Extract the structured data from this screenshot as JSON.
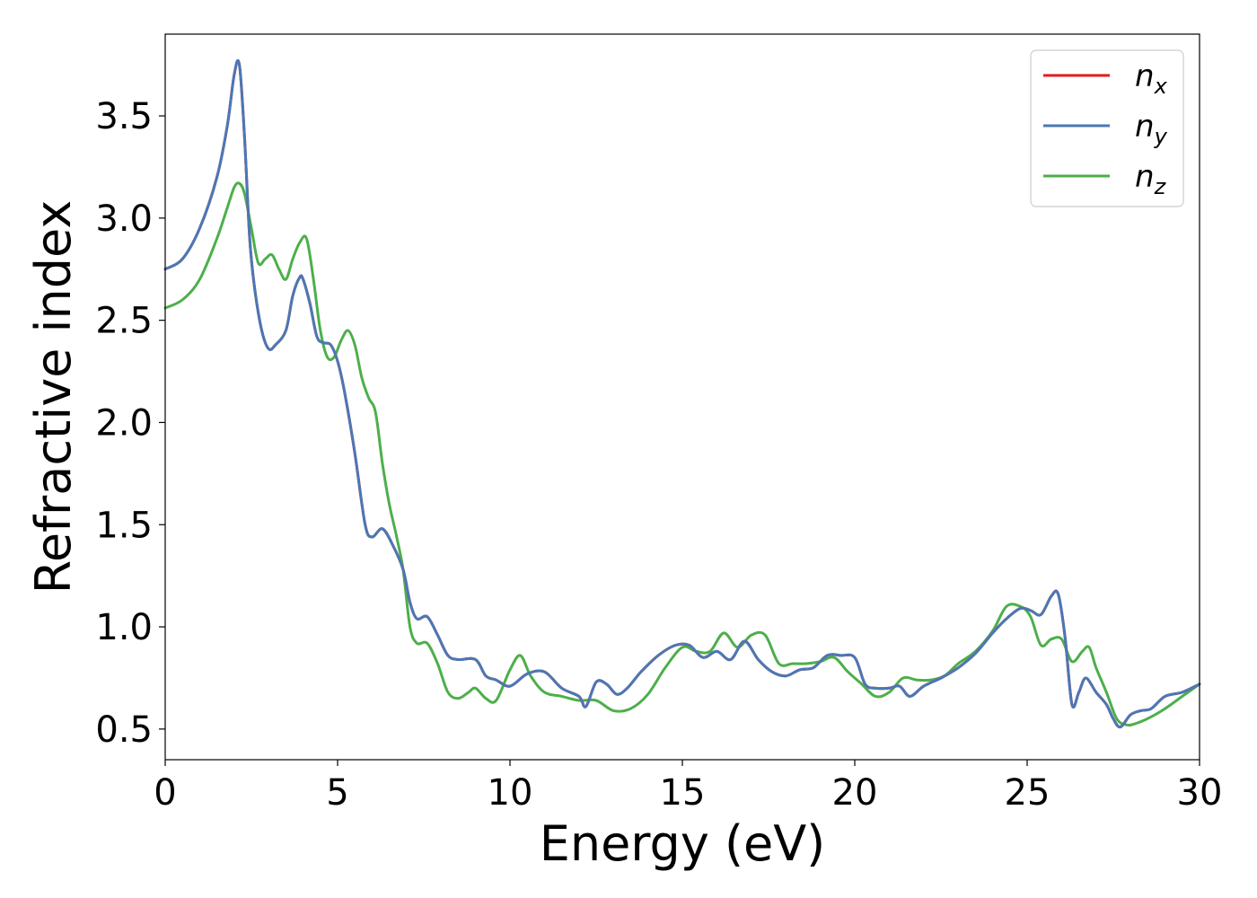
{
  "chart_data": {
    "type": "line",
    "title": "",
    "xlabel": "Energy (eV)",
    "ylabel": "Refractive index",
    "xlim": [
      0,
      30
    ],
    "ylim": [
      0.35,
      3.9
    ],
    "xticks": [
      0,
      5,
      10,
      15,
      20,
      25,
      30
    ],
    "xtick_labels": [
      "0",
      "5",
      "10",
      "15",
      "20",
      "25",
      "30"
    ],
    "yticks": [
      0.5,
      1.0,
      1.5,
      2.0,
      2.5,
      3.0,
      3.5
    ],
    "ytick_labels": [
      "0.5",
      "1.0",
      "1.5",
      "2.0",
      "2.5",
      "3.0",
      "3.5"
    ],
    "grid": false,
    "legend_position": "top-right",
    "series": [
      {
        "name": "n_x",
        "legend_base": "n",
        "legend_sub": "x",
        "color": "#e41a1c",
        "x": [
          0,
          0.5,
          1.0,
          1.5,
          1.8,
          2.0,
          2.15,
          2.3,
          2.45,
          2.6,
          2.8,
          3.0,
          3.2,
          3.5,
          3.7,
          3.9,
          4.0,
          4.2,
          4.4,
          4.6,
          4.8,
          5.0,
          5.2,
          5.5,
          5.8,
          6.0,
          6.3,
          6.6,
          6.9,
          7.1,
          7.3,
          7.6,
          7.9,
          8.2,
          8.5,
          9.0,
          9.3,
          9.6,
          10.0,
          10.5,
          11.0,
          11.5,
          12.0,
          12.2,
          12.5,
          12.8,
          13.1,
          13.4,
          13.8,
          14.3,
          14.8,
          15.2,
          15.6,
          16.0,
          16.4,
          16.8,
          17.2,
          17.6,
          18.0,
          18.4,
          18.8,
          19.2,
          19.6,
          20.0,
          20.3,
          20.6,
          21.0,
          21.3,
          21.6,
          22.0,
          22.5,
          23.0,
          23.5,
          24.0,
          24.4,
          24.8,
          25.1,
          25.4,
          25.7,
          25.9,
          26.1,
          26.3,
          26.5,
          26.7,
          27.0,
          27.3,
          27.5,
          27.7,
          28.0,
          28.3,
          28.6,
          29.0,
          29.5,
          30.0
        ],
        "y": [
          2.75,
          2.8,
          2.95,
          3.2,
          3.45,
          3.7,
          3.75,
          3.4,
          2.9,
          2.65,
          2.45,
          2.36,
          2.38,
          2.45,
          2.62,
          2.71,
          2.7,
          2.58,
          2.42,
          2.39,
          2.38,
          2.3,
          2.15,
          1.85,
          1.5,
          1.44,
          1.48,
          1.4,
          1.28,
          1.12,
          1.04,
          1.05,
          0.96,
          0.86,
          0.84,
          0.84,
          0.76,
          0.74,
          0.71,
          0.77,
          0.78,
          0.7,
          0.66,
          0.61,
          0.73,
          0.72,
          0.67,
          0.7,
          0.78,
          0.86,
          0.91,
          0.91,
          0.85,
          0.88,
          0.84,
          0.93,
          0.84,
          0.78,
          0.76,
          0.79,
          0.8,
          0.86,
          0.86,
          0.85,
          0.72,
          0.7,
          0.7,
          0.71,
          0.66,
          0.71,
          0.75,
          0.8,
          0.87,
          0.97,
          1.04,
          1.09,
          1.08,
          1.06,
          1.15,
          1.16,
          0.95,
          0.62,
          0.68,
          0.75,
          0.68,
          0.62,
          0.55,
          0.51,
          0.57,
          0.59,
          0.6,
          0.66,
          0.68,
          0.72
        ]
      },
      {
        "name": "n_y",
        "legend_base": "n",
        "legend_sub": "y",
        "color": "#4a78b5",
        "x": [
          0,
          0.5,
          1.0,
          1.5,
          1.8,
          2.0,
          2.15,
          2.3,
          2.45,
          2.6,
          2.8,
          3.0,
          3.2,
          3.5,
          3.7,
          3.9,
          4.0,
          4.2,
          4.4,
          4.6,
          4.8,
          5.0,
          5.2,
          5.5,
          5.8,
          6.0,
          6.3,
          6.6,
          6.9,
          7.1,
          7.3,
          7.6,
          7.9,
          8.2,
          8.5,
          9.0,
          9.3,
          9.6,
          10.0,
          10.5,
          11.0,
          11.5,
          12.0,
          12.2,
          12.5,
          12.8,
          13.1,
          13.4,
          13.8,
          14.3,
          14.8,
          15.2,
          15.6,
          16.0,
          16.4,
          16.8,
          17.2,
          17.6,
          18.0,
          18.4,
          18.8,
          19.2,
          19.6,
          20.0,
          20.3,
          20.6,
          21.0,
          21.3,
          21.6,
          22.0,
          22.5,
          23.0,
          23.5,
          24.0,
          24.4,
          24.8,
          25.1,
          25.4,
          25.7,
          25.9,
          26.1,
          26.3,
          26.5,
          26.7,
          27.0,
          27.3,
          27.5,
          27.7,
          28.0,
          28.3,
          28.6,
          29.0,
          29.5,
          30.0
        ],
        "y": [
          2.75,
          2.8,
          2.95,
          3.2,
          3.45,
          3.7,
          3.75,
          3.4,
          2.9,
          2.65,
          2.45,
          2.36,
          2.38,
          2.45,
          2.62,
          2.71,
          2.7,
          2.58,
          2.42,
          2.39,
          2.38,
          2.3,
          2.15,
          1.85,
          1.5,
          1.44,
          1.48,
          1.4,
          1.28,
          1.12,
          1.04,
          1.05,
          0.96,
          0.86,
          0.84,
          0.84,
          0.76,
          0.74,
          0.71,
          0.77,
          0.78,
          0.7,
          0.66,
          0.61,
          0.73,
          0.72,
          0.67,
          0.7,
          0.78,
          0.86,
          0.91,
          0.91,
          0.85,
          0.88,
          0.84,
          0.93,
          0.84,
          0.78,
          0.76,
          0.79,
          0.8,
          0.86,
          0.86,
          0.85,
          0.72,
          0.7,
          0.7,
          0.71,
          0.66,
          0.71,
          0.75,
          0.8,
          0.87,
          0.97,
          1.04,
          1.09,
          1.08,
          1.06,
          1.15,
          1.16,
          0.95,
          0.62,
          0.68,
          0.75,
          0.68,
          0.62,
          0.55,
          0.51,
          0.57,
          0.59,
          0.6,
          0.66,
          0.68,
          0.72
        ]
      },
      {
        "name": "n_z",
        "legend_base": "n",
        "legend_sub": "z",
        "color": "#4daf4a",
        "x": [
          0,
          0.5,
          1.0,
          1.5,
          1.8,
          2.0,
          2.15,
          2.3,
          2.5,
          2.7,
          2.9,
          3.1,
          3.3,
          3.5,
          3.7,
          3.9,
          4.1,
          4.3,
          4.5,
          4.7,
          4.9,
          5.1,
          5.3,
          5.5,
          5.7,
          5.9,
          6.1,
          6.3,
          6.5,
          6.7,
          6.9,
          7.1,
          7.3,
          7.6,
          7.9,
          8.2,
          8.5,
          8.8,
          9.0,
          9.3,
          9.6,
          10.0,
          10.3,
          10.6,
          11.0,
          11.5,
          12.0,
          12.5,
          13.0,
          13.5,
          14.0,
          14.5,
          15.0,
          15.4,
          15.8,
          16.2,
          16.6,
          17.0,
          17.4,
          17.8,
          18.2,
          18.6,
          19.0,
          19.4,
          19.8,
          20.2,
          20.6,
          21.0,
          21.4,
          21.8,
          22.2,
          22.6,
          23.0,
          23.5,
          24.0,
          24.4,
          24.8,
          25.1,
          25.4,
          25.7,
          26.0,
          26.3,
          26.6,
          26.8,
          27.0,
          27.3,
          27.6,
          27.9,
          28.2,
          28.6,
          29.0,
          29.5,
          30.0
        ],
        "y": [
          2.56,
          2.6,
          2.7,
          2.9,
          3.05,
          3.15,
          3.17,
          3.12,
          2.95,
          2.78,
          2.8,
          2.82,
          2.75,
          2.7,
          2.8,
          2.88,
          2.9,
          2.7,
          2.45,
          2.32,
          2.32,
          2.4,
          2.45,
          2.38,
          2.22,
          2.12,
          2.05,
          1.8,
          1.6,
          1.45,
          1.28,
          1.0,
          0.92,
          0.92,
          0.82,
          0.68,
          0.65,
          0.68,
          0.7,
          0.65,
          0.64,
          0.79,
          0.86,
          0.76,
          0.68,
          0.66,
          0.64,
          0.64,
          0.59,
          0.6,
          0.67,
          0.8,
          0.9,
          0.88,
          0.88,
          0.97,
          0.9,
          0.96,
          0.96,
          0.82,
          0.82,
          0.82,
          0.83,
          0.85,
          0.78,
          0.72,
          0.66,
          0.68,
          0.75,
          0.74,
          0.74,
          0.76,
          0.82,
          0.88,
          0.98,
          1.1,
          1.1,
          1.05,
          0.91,
          0.94,
          0.94,
          0.83,
          0.88,
          0.9,
          0.8,
          0.68,
          0.55,
          0.52,
          0.53,
          0.56,
          0.6,
          0.66,
          0.72
        ]
      }
    ]
  }
}
